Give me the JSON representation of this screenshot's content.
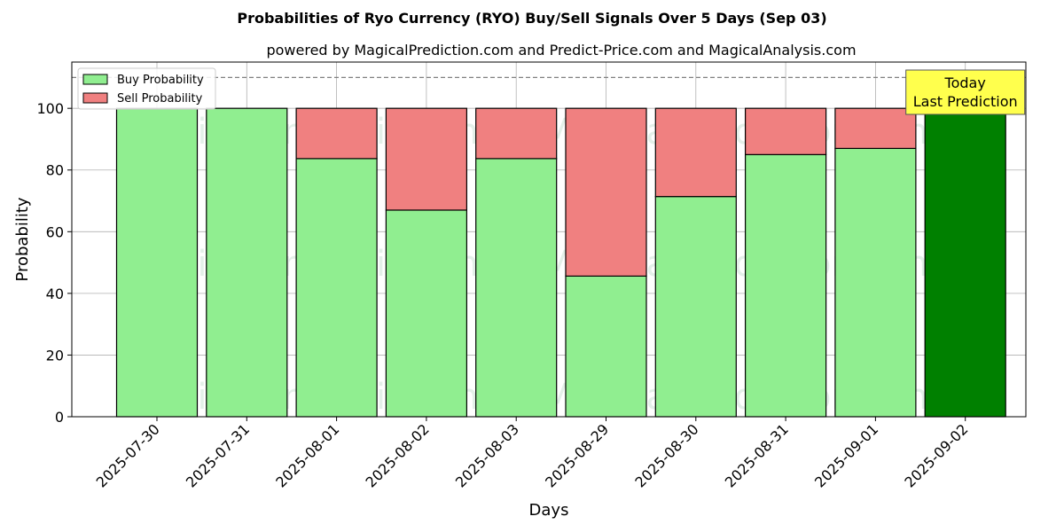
{
  "chart_data": {
    "type": "bar",
    "stacked": true,
    "title": "Probabilities of Ryo Currency (RYO) Buy/Sell Signals Over 5 Days (Sep 03)",
    "subtitle": "powered by MagicalPrediction.com and Predict-Price.com and MagicalAnalysis.com",
    "xlabel": "Days",
    "ylabel": "Probability",
    "ylim": [
      0,
      115
    ],
    "yticks": [
      0,
      20,
      40,
      60,
      80,
      100
    ],
    "grid": true,
    "legend_position": "top-left",
    "reference_line": 110,
    "categories": [
      "2025-07-30",
      "2025-07-31",
      "2025-08-01",
      "2025-08-02",
      "2025-08-03",
      "2025-08-29",
      "2025-08-30",
      "2025-08-31",
      "2025-09-01",
      "2025-09-02"
    ],
    "series": [
      {
        "name": "Buy Probability",
        "color": "#90ee90",
        "values": [
          100,
          100,
          83.7,
          67,
          83.7,
          45.6,
          71.4,
          85,
          87,
          100
        ]
      },
      {
        "name": "Sell Probability",
        "color": "#f08080",
        "values": [
          0,
          0,
          16.3,
          33,
          16.3,
          54.4,
          28.6,
          15,
          13,
          0
        ]
      }
    ],
    "highlight": {
      "category": "2025-09-02",
      "color": "#008000"
    },
    "annotation": {
      "lines": [
        "Today",
        "Last Prediction"
      ],
      "color": "#ffff4d"
    },
    "watermarks": [
      "MagicalAnalysis.com",
      "MagicalPrediction.com"
    ]
  }
}
